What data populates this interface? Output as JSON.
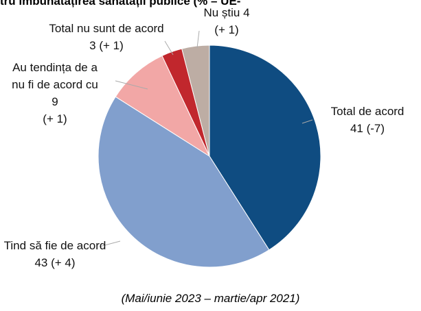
{
  "chart_data": {
    "type": "pie",
    "title": "tru îmbunătățirea sănătății publice (% – UE-",
    "subtitle": "(Mai/iunie 2023 – martie/apr 2021)",
    "categories": [
      "Total de acord",
      "Tind să fie de acord",
      "Au tendința de a nu fi de acord cu",
      "Total nu sunt de acord",
      "Nu știu"
    ],
    "values": [
      41,
      43,
      9,
      3,
      4
    ],
    "change_labels": [
      "(-7)",
      "(+ 4)",
      "(+ 1)",
      "(+ 1)",
      "(+ 1)"
    ],
    "colors": [
      "#0f4c81",
      "#819fcd",
      "#f2a7a6",
      "#c1272d",
      "#bdada4"
    ]
  }
}
